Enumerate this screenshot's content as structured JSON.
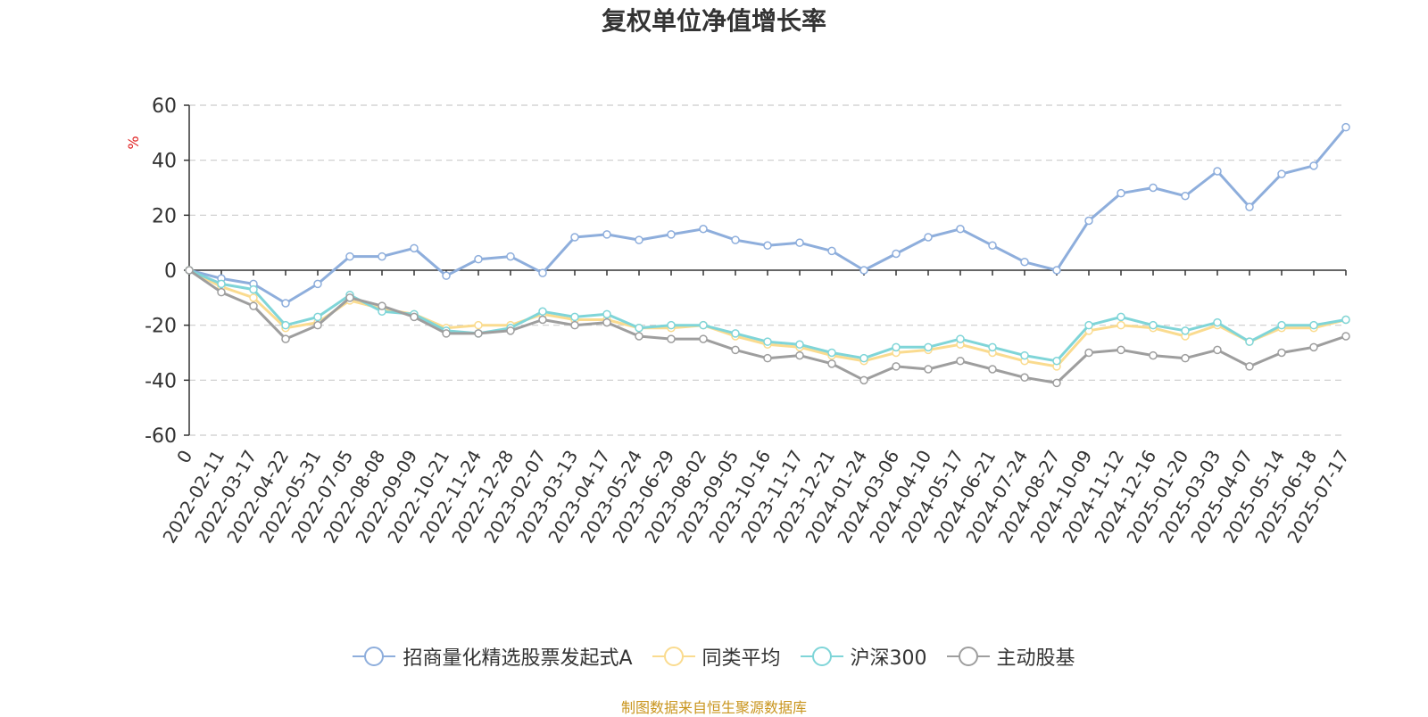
{
  "chart_data": {
    "type": "line",
    "title": "复权单位净值增长率",
    "ylabel": "%",
    "ylim": [
      -60,
      60
    ],
    "yticks": [
      "60",
      "40",
      "20",
      "0",
      "-20",
      "-40",
      "-60"
    ],
    "grid": true,
    "legend_position": "bottom",
    "categories": [
      "0",
      "2022-02-11",
      "2022-03-17",
      "2022-04-22",
      "2022-05-31",
      "2022-07-05",
      "2022-08-08",
      "2022-09-09",
      "2022-10-21",
      "2022-11-24",
      "2022-12-28",
      "2023-02-07",
      "2023-03-13",
      "2023-04-17",
      "2023-05-24",
      "2023-06-29",
      "2023-08-02",
      "2023-09-05",
      "2023-10-16",
      "2023-11-17",
      "2023-12-21",
      "2024-01-24",
      "2024-03-06",
      "2024-04-10",
      "2024-05-17",
      "2024-06-21",
      "2024-07-24",
      "2024-08-27",
      "2024-10-09",
      "2024-11-12",
      "2024-12-16",
      "2025-01-20",
      "2025-03-03",
      "2025-04-07",
      "2025-05-14",
      "2025-06-18",
      "2025-07-17"
    ],
    "series": [
      {
        "name": "招商量化精选股票发起式A",
        "color": "#8eaedc",
        "values": [
          0,
          -3,
          -5,
          -12,
          -5,
          5,
          5,
          8,
          -2,
          4,
          5,
          -1,
          12,
          13,
          11,
          13,
          15,
          11,
          9,
          10,
          7,
          0,
          6,
          12,
          15,
          9,
          3,
          0,
          18,
          28,
          30,
          27,
          36,
          23,
          35,
          38,
          52
        ]
      },
      {
        "name": "同类平均",
        "color": "#fadb8f",
        "values": [
          0,
          -6,
          -10,
          -21,
          -19,
          -11,
          -14,
          -16,
          -21,
          -20,
          -20,
          -16,
          -18,
          -18,
          -21,
          -21,
          -20,
          -24,
          -27,
          -28,
          -31,
          -33,
          -30,
          -29,
          -27,
          -30,
          -33,
          -35,
          -22,
          -20,
          -21,
          -24,
          -20,
          -26,
          -21,
          -21,
          -18
        ]
      },
      {
        "name": "沪深300",
        "color": "#7fd5d8",
        "values": [
          0,
          -5,
          -7,
          -20,
          -17,
          -9,
          -15,
          -16,
          -22,
          -23,
          -21,
          -15,
          -17,
          -16,
          -21,
          -20,
          -20,
          -23,
          -26,
          -27,
          -30,
          -32,
          -28,
          -28,
          -25,
          -28,
          -31,
          -33,
          -20,
          -17,
          -20,
          -22,
          -19,
          -26,
          -20,
          -20,
          -18
        ]
      },
      {
        "name": "主动股基",
        "color": "#9e9e9e",
        "values": [
          0,
          -8,
          -13,
          -25,
          -20,
          -10,
          -13,
          -17,
          -23,
          -23,
          -22,
          -18,
          -20,
          -19,
          -24,
          -25,
          -25,
          -29,
          -32,
          -31,
          -34,
          -40,
          -35,
          -36,
          -33,
          -36,
          -39,
          -41,
          -30,
          -29,
          -31,
          -32,
          -29,
          -35,
          -30,
          -28,
          -24
        ]
      }
    ]
  },
  "footer": {
    "source": "制图数据来自恒生聚源数据库"
  }
}
